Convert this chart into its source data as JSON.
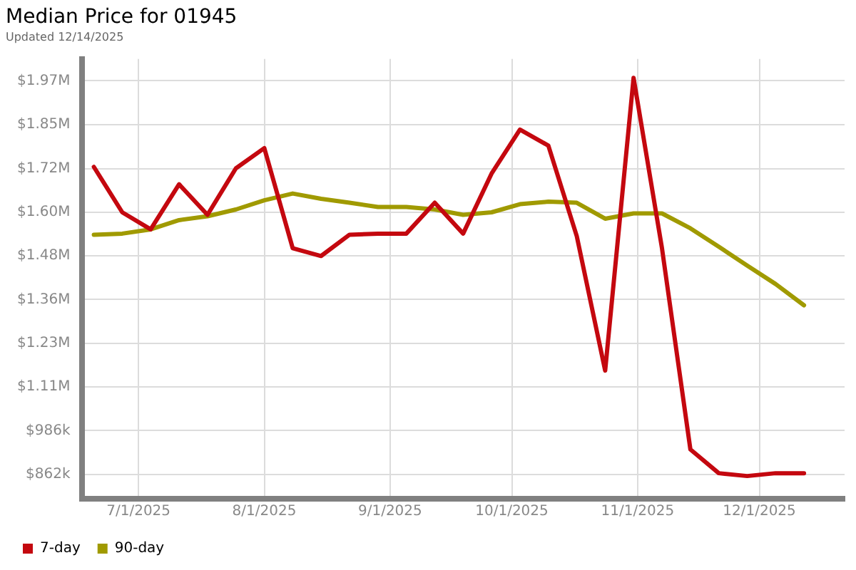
{
  "chart_data": {
    "type": "line",
    "title": "Median Price for 01945",
    "subtitle": "Updated 12/14/2025",
    "x": [
      "2025-06-20",
      "2025-06-27",
      "2025-07-04",
      "2025-07-11",
      "2025-07-18",
      "2025-07-25",
      "2025-08-01",
      "2025-08-08",
      "2025-08-15",
      "2025-08-22",
      "2025-08-29",
      "2025-09-05",
      "2025-09-12",
      "2025-09-19",
      "2025-09-26",
      "2025-10-03",
      "2025-10-10",
      "2025-10-17",
      "2025-10-24",
      "2025-10-31",
      "2025-11-07",
      "2025-11-14",
      "2025-11-21",
      "2025-11-28",
      "2025-12-05",
      "2025-12-12"
    ],
    "series": [
      {
        "name": "7-day",
        "color": "#c4080f",
        "values": [
          1729000,
          1601000,
          1553000,
          1680000,
          1594000,
          1725000,
          1782000,
          1500000,
          1478000,
          1538000,
          1541000,
          1541000,
          1628000,
          1541000,
          1710000,
          1834000,
          1789000,
          1534000,
          1155000,
          1980000,
          1500000,
          933000,
          866000,
          858000,
          866000,
          866000
        ]
      },
      {
        "name": "90-day",
        "color": "#a09a00",
        "values": [
          1538000,
          1541000,
          1553000,
          1579000,
          1590000,
          1609000,
          1635000,
          1654000,
          1639000,
          1628000,
          1616000,
          1616000,
          1609000,
          1594000,
          1601000,
          1624000,
          1631000,
          1628000,
          1583000,
          1598000,
          1598000,
          1556000,
          1504000,
          1451000,
          1399000,
          1339000
        ]
      }
    ],
    "xlim": [
      "2025-06-17",
      "2025-12-22"
    ],
    "xticks": [
      {
        "value": "2025-07-01",
        "label": "7/1/2025"
      },
      {
        "value": "2025-08-01",
        "label": "8/1/2025"
      },
      {
        "value": "2025-09-01",
        "label": "9/1/2025"
      },
      {
        "value": "2025-10-01",
        "label": "10/1/2025"
      },
      {
        "value": "2025-11-01",
        "label": "11/1/2025"
      },
      {
        "value": "2025-12-01",
        "label": "12/1/2025"
      }
    ],
    "ylim": [
      794000,
      2033000
    ],
    "yticks": [
      {
        "value": 862000,
        "label": "$862k"
      },
      {
        "value": 986000,
        "label": "$986k"
      },
      {
        "value": 1108600,
        "label": "$1.11M"
      },
      {
        "value": 1231900,
        "label": "$1.23M"
      },
      {
        "value": 1355200,
        "label": "$1.36M"
      },
      {
        "value": 1478500,
        "label": "$1.48M"
      },
      {
        "value": 1601800,
        "label": "$1.60M"
      },
      {
        "value": 1724000,
        "label": "$1.72M"
      },
      {
        "value": 1848400,
        "label": "$1.85M"
      },
      {
        "value": 1971700,
        "label": "$1.97M"
      }
    ],
    "grid": true,
    "legend": "bottom",
    "marker": "none",
    "line_style": "solid"
  }
}
